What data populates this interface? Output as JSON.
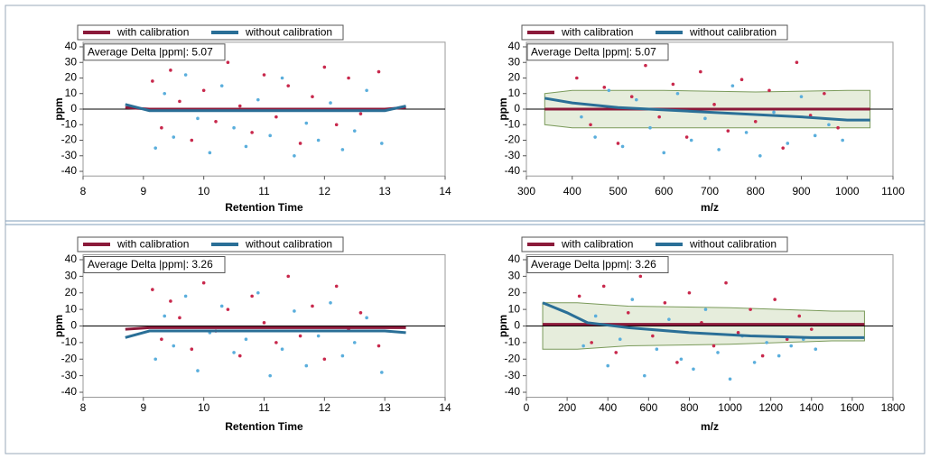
{
  "chart_data": [
    {
      "type": "scatter",
      "annotation": "Average Delta |ppm|: 5.07",
      "xlabel": "Retention Time",
      "ylabel": "ppm",
      "xlim": [
        8,
        14
      ],
      "xticks": [
        8,
        9,
        10,
        11,
        12,
        13,
        14
      ],
      "ylim": [
        -43,
        43
      ],
      "yticks": [
        -40,
        -30,
        -20,
        -10,
        0,
        10,
        20,
        30,
        40
      ],
      "series": [
        {
          "name": "with calibration",
          "color": "#8b1a3a",
          "point_color": "#c8284c",
          "x": [
            9.15,
            9.3,
            9.45,
            9.6,
            9.8,
            10.0,
            10.2,
            10.4,
            10.6,
            10.8,
            11.0,
            11.2,
            11.4,
            11.6,
            11.8,
            12.0,
            12.2,
            12.4,
            12.6,
            12.9
          ],
          "values": [
            18,
            -12,
            25,
            5,
            -20,
            12,
            -8,
            30,
            2,
            -15,
            22,
            -5,
            15,
            -22,
            8,
            27,
            -10,
            20,
            -3,
            24
          ],
          "trend_x": [
            8.7,
            9.1,
            13.0,
            13.35
          ],
          "trend_values": [
            1,
            0,
            0,
            1
          ]
        },
        {
          "name": "without calibration",
          "color": "#2a6f97",
          "point_color": "#5aaedc",
          "x": [
            9.2,
            9.35,
            9.5,
            9.7,
            9.9,
            10.1,
            10.3,
            10.5,
            10.7,
            10.9,
            11.1,
            11.3,
            11.5,
            11.7,
            11.9,
            12.1,
            12.3,
            12.5,
            12.7,
            12.95
          ],
          "values": [
            -25,
            10,
            -18,
            22,
            -6,
            -28,
            15,
            -12,
            -24,
            6,
            -17,
            20,
            -30,
            -9,
            -20,
            4,
            -26,
            -14,
            12,
            -22
          ],
          "trend_x": [
            8.7,
            9.1,
            13.0,
            13.35
          ],
          "trend_values": [
            3,
            -1,
            -1,
            2
          ]
        }
      ]
    },
    {
      "type": "scatter",
      "annotation": "Average Delta |ppm|: 5.07",
      "xlabel": "m/z",
      "ylabel": "ppm",
      "xlim": [
        300,
        1100
      ],
      "xticks": [
        300,
        400,
        500,
        600,
        700,
        800,
        900,
        1000,
        1100
      ],
      "ylim": [
        -43,
        43
      ],
      "yticks": [
        -40,
        -30,
        -20,
        -10,
        0,
        10,
        20,
        30,
        40
      ],
      "band": {
        "x": [
          340,
          400,
          600,
          800,
          1000,
          1050
        ],
        "upper": [
          10,
          12,
          12,
          11,
          12,
          12
        ],
        "lower": [
          -10,
          -12,
          -12,
          -12,
          -12,
          -12
        ]
      },
      "series": [
        {
          "name": "with calibration",
          "color": "#8b1a3a",
          "point_color": "#c8284c",
          "x": [
            410,
            440,
            470,
            500,
            530,
            560,
            590,
            620,
            650,
            680,
            710,
            740,
            770,
            800,
            830,
            860,
            890,
            920,
            950,
            980
          ],
          "values": [
            20,
            -10,
            14,
            -22,
            8,
            28,
            -5,
            16,
            -18,
            24,
            3,
            -14,
            19,
            -8,
            12,
            -25,
            30,
            -4,
            10,
            -12
          ],
          "trend_x": [
            340,
            1050
          ],
          "trend_values": [
            0,
            0
          ]
        },
        {
          "name": "without calibration",
          "color": "#2a6f97",
          "point_color": "#5aaedc",
          "x": [
            420,
            450,
            480,
            510,
            540,
            570,
            600,
            630,
            660,
            690,
            720,
            750,
            780,
            810,
            840,
            870,
            900,
            930,
            960,
            990
          ],
          "values": [
            -5,
            -18,
            12,
            -24,
            6,
            -12,
            -28,
            10,
            -20,
            -6,
            -26,
            15,
            -15,
            -30,
            -2,
            -22,
            8,
            -17,
            -10,
            -20
          ],
          "trend_x": [
            340,
            400,
            500,
            700,
            900,
            1000,
            1050
          ],
          "trend_values": [
            7,
            4,
            1,
            -2,
            -5,
            -7,
            -7
          ]
        }
      ]
    },
    {
      "type": "scatter",
      "annotation": "Average Delta |ppm|: 3.26",
      "xlabel": "Retention Time",
      "ylabel": "ppm",
      "xlim": [
        8,
        14
      ],
      "xticks": [
        8,
        9,
        10,
        11,
        12,
        13,
        14
      ],
      "ylim": [
        -43,
        43
      ],
      "yticks": [
        -40,
        -30,
        -20,
        -10,
        0,
        10,
        20,
        30,
        40
      ],
      "series": [
        {
          "name": "with calibration",
          "color": "#8b1a3a",
          "point_color": "#c8284c",
          "x": [
            9.15,
            9.3,
            9.45,
            9.6,
            9.8,
            10.0,
            10.2,
            10.4,
            10.6,
            10.8,
            11.0,
            11.2,
            11.4,
            11.6,
            11.8,
            12.0,
            12.2,
            12.4,
            12.6,
            12.9
          ],
          "values": [
            22,
            -8,
            15,
            5,
            -14,
            26,
            -3,
            10,
            -18,
            18,
            2,
            -10,
            30,
            -6,
            12,
            -20,
            24,
            -2,
            8,
            -12
          ],
          "trend_x": [
            8.7,
            9.1,
            13.0,
            13.35
          ],
          "trend_values": [
            -2,
            -1,
            -1,
            -1
          ]
        },
        {
          "name": "without calibration",
          "color": "#2a6f97",
          "point_color": "#5aaedc",
          "x": [
            9.2,
            9.35,
            9.5,
            9.7,
            9.9,
            10.1,
            10.3,
            10.5,
            10.7,
            10.9,
            11.1,
            11.3,
            11.5,
            11.7,
            11.9,
            12.1,
            12.3,
            12.5,
            12.7,
            12.95
          ],
          "values": [
            -20,
            6,
            -12,
            18,
            -27,
            -4,
            12,
            -16,
            -8,
            20,
            -30,
            -14,
            9,
            -24,
            -6,
            14,
            -18,
            -10,
            5,
            -28
          ],
          "trend_x": [
            8.7,
            9.1,
            13.0,
            13.35
          ],
          "trend_values": [
            -7,
            -3,
            -3,
            -4
          ]
        }
      ]
    },
    {
      "type": "scatter",
      "annotation": "Average Delta |ppm|: 3.26",
      "xlabel": "m/z",
      "ylabel": "ppm",
      "xlim": [
        0,
        1800
      ],
      "xticks": [
        0,
        200,
        400,
        600,
        800,
        1000,
        1200,
        1400,
        1600,
        1800
      ],
      "ylim": [
        -43,
        43
      ],
      "yticks": [
        -40,
        -30,
        -20,
        -10,
        0,
        10,
        20,
        30,
        40
      ],
      "band": {
        "x": [
          80,
          250,
          500,
          1000,
          1500,
          1660
        ],
        "upper": [
          14,
          14,
          12,
          11,
          9,
          9
        ],
        "lower": [
          -14,
          -14,
          -12,
          -11,
          -9,
          -9
        ]
      },
      "series": [
        {
          "name": "with calibration",
          "color": "#8b1a3a",
          "point_color": "#c8284c",
          "x": [
            260,
            320,
            380,
            440,
            500,
            560,
            620,
            680,
            740,
            800,
            860,
            920,
            980,
            1040,
            1100,
            1160,
            1220,
            1280,
            1340,
            1400
          ],
          "values": [
            18,
            -10,
            24,
            -16,
            8,
            30,
            -6,
            14,
            -22,
            20,
            2,
            -12,
            26,
            -4,
            10,
            -18,
            16,
            -8,
            6,
            -2
          ],
          "trend_x": [
            80,
            1660
          ],
          "trend_values": [
            1,
            1
          ]
        },
        {
          "name": "without calibration",
          "color": "#2a6f97",
          "point_color": "#5aaedc",
          "x": [
            280,
            340,
            400,
            460,
            520,
            580,
            640,
            700,
            760,
            820,
            880,
            940,
            1000,
            1060,
            1120,
            1180,
            1240,
            1300,
            1360,
            1420
          ],
          "values": [
            -12,
            6,
            -24,
            -8,
            16,
            -30,
            -14,
            4,
            -20,
            -26,
            10,
            -16,
            -32,
            -6,
            -22,
            -10,
            -18,
            -12,
            -8,
            -14
          ],
          "trend_x": [
            80,
            200,
            300,
            500,
            800,
            1100,
            1400,
            1660
          ],
          "trend_values": [
            14,
            8,
            2,
            -1,
            -4,
            -6,
            -7,
            -7
          ]
        }
      ]
    }
  ]
}
